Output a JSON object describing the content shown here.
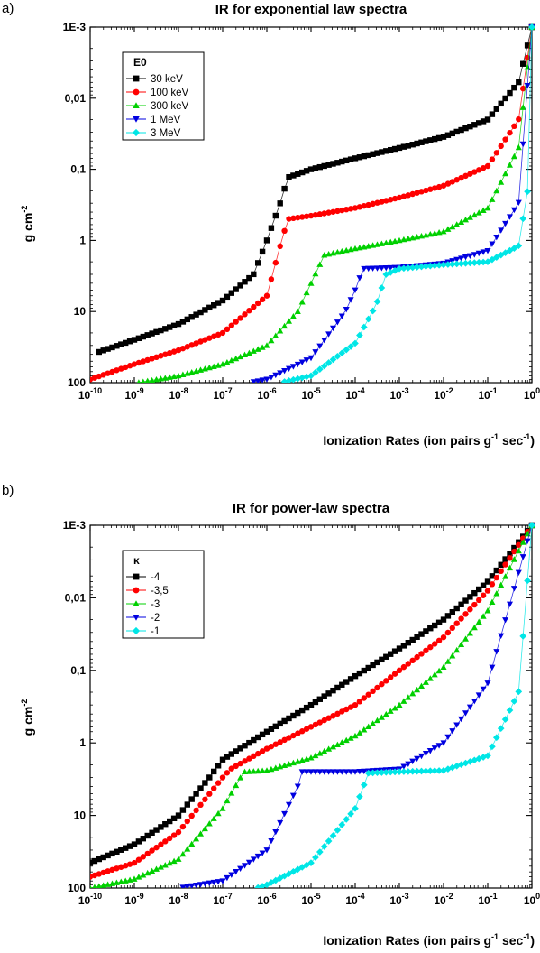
{
  "chart_data": [
    {
      "type": "scatter",
      "panel_label": "a)",
      "title": "IR for exponential law spectra",
      "xlabel_main": "Ionization Rates (ion pairs g",
      "xlabel_sup1": "-1",
      "xlabel_mid": " sec",
      "xlabel_sup2": "-1",
      "xlabel_end": ")",
      "ylabel_main": "g cm",
      "ylabel_sup": "-2",
      "x_scale": "log",
      "y_scale": "log",
      "y_reversed": true,
      "xlim": [
        1e-10,
        1
      ],
      "ylim": [
        0.001,
        100
      ],
      "x_tick_labels": [
        "10-10",
        "10-9",
        "10-8",
        "10-7",
        "10-6",
        "10-5",
        "10-4",
        "10-3",
        "10-2",
        "10-1",
        "100"
      ],
      "y_tick_labels": [
        "1E-3",
        "0,01",
        "0,1",
        "1",
        "10",
        "100"
      ],
      "legend_title": "E0",
      "legend_position": "top-left",
      "series": [
        {
          "name": "30 keV",
          "color": "#000000",
          "marker": "square",
          "x": [
            1.4e-10,
            1e-09,
            1e-08,
            1e-07,
            5e-07,
            1e-06,
            2e-06,
            3e-06,
            1e-05,
            0.0001,
            0.001,
            0.01,
            0.1,
            0.5,
            1
          ],
          "y": [
            38,
            25,
            15,
            7,
            3,
            1,
            0.3,
            0.13,
            0.1,
            0.07,
            0.05,
            0.035,
            0.02,
            0.006,
            0.001
          ]
        },
        {
          "name": "100 keV",
          "color": "#ff0000",
          "marker": "circle",
          "x": [
            1e-10,
            1e-09,
            1e-08,
            1e-07,
            1e-06,
            2e-06,
            3e-06,
            1e-05,
            0.0001,
            0.001,
            0.01,
            0.1,
            0.5,
            1
          ],
          "y": [
            90,
            55,
            35,
            20,
            6,
            1.2,
            0.5,
            0.45,
            0.35,
            0.25,
            0.17,
            0.09,
            0.02,
            0.001
          ]
        },
        {
          "name": "300 keV",
          "color": "#00d000",
          "marker": "triangle-up",
          "x": [
            1.2e-09,
            1e-08,
            1e-07,
            1e-06,
            5e-06,
            1e-05,
            2e-05,
            0.0001,
            0.001,
            0.01,
            0.1,
            0.5,
            1
          ],
          "y": [
            100,
            80,
            55,
            30,
            10,
            4,
            1.6,
            1.3,
            1,
            0.75,
            0.35,
            0.05,
            0.001
          ]
        },
        {
          "name": "1 MeV",
          "color": "#0000e0",
          "marker": "triangle-down",
          "x": [
            4e-07,
            1e-06,
            1e-05,
            6e-05,
            0.0001,
            0.00015,
            0.001,
            0.01,
            0.1,
            0.5,
            1
          ],
          "y": [
            100,
            90,
            45,
            10,
            5,
            2.5,
            2.4,
            2.1,
            1.4,
            0.3,
            0.001
          ]
        },
        {
          "name": "3 MeV",
          "color": "#00e6e6",
          "marker": "diamond",
          "x": [
            2e-06,
            1e-05,
            0.0001,
            0.0003,
            0.0005,
            0.001,
            0.01,
            0.1,
            0.5,
            0.8,
            1
          ],
          "y": [
            100,
            80,
            28,
            8,
            3,
            2.5,
            2.2,
            2.0,
            1.2,
            0.2,
            0.001
          ]
        }
      ]
    },
    {
      "type": "scatter",
      "panel_label": "b)",
      "title": "IR for power-law spectra",
      "xlabel_main": "Ionization Rates (ion pairs g",
      "xlabel_sup1": "-1",
      "xlabel_mid": " sec",
      "xlabel_sup2": "-1",
      "xlabel_end": ")",
      "ylabel_main": "g cm",
      "ylabel_sup": "-2",
      "x_scale": "log",
      "y_scale": "log",
      "y_reversed": true,
      "xlim": [
        1e-10,
        1
      ],
      "ylim": [
        0.001,
        100
      ],
      "x_tick_labels": [
        "10-10",
        "10-9",
        "10-8",
        "10-7",
        "10-6",
        "10-5",
        "10-4",
        "10-3",
        "10-2",
        "10-1",
        "100"
      ],
      "y_tick_labels": [
        "1E-3",
        "0,01",
        "0,1",
        "1",
        "10",
        "100"
      ],
      "legend_title": "κ",
      "legend_position": "top-left",
      "series": [
        {
          "name": "-4",
          "color": "#000000",
          "marker": "square",
          "x": [
            1e-10,
            1e-09,
            1e-08,
            5e-08,
            1e-07,
            1e-06,
            1e-05,
            0.0001,
            0.001,
            0.01,
            0.1,
            1
          ],
          "y": [
            45,
            25,
            10,
            3,
            1.7,
            0.7,
            0.3,
            0.12,
            0.05,
            0.02,
            0.006,
            0.001
          ]
        },
        {
          "name": "-3,5",
          "color": "#ff0000",
          "marker": "circle",
          "x": [
            1e-10,
            1e-09,
            1e-08,
            1e-07,
            1.5e-07,
            1e-06,
            1e-05,
            0.0001,
            0.001,
            0.01,
            0.1,
            1
          ],
          "y": [
            70,
            45,
            17,
            3,
            2.3,
            1.2,
            0.6,
            0.3,
            0.1,
            0.035,
            0.008,
            0.001
          ]
        },
        {
          "name": "-3",
          "color": "#00d000",
          "marker": "triangle-up",
          "x": [
            1e-10,
            1e-09,
            1e-08,
            1e-07,
            3e-07,
            1e-06,
            1e-05,
            0.0001,
            0.001,
            0.01,
            0.1,
            1
          ],
          "y": [
            100,
            75,
            40,
            8,
            2.5,
            2.4,
            1.6,
            0.8,
            0.3,
            0.09,
            0.015,
            0.001
          ]
        },
        {
          "name": "-2",
          "color": "#0000e0",
          "marker": "triangle-down",
          "x": [
            1e-08,
            1e-07,
            1e-06,
            5e-06,
            6e-06,
            1e-05,
            0.0001,
            0.001,
            0.01,
            0.1,
            1
          ],
          "y": [
            100,
            80,
            30,
            4,
            2.5,
            2.5,
            2.5,
            2.3,
            1,
            0.15,
            0.001
          ]
        },
        {
          "name": "-1",
          "color": "#00e6e6",
          "marker": "diamond",
          "x": [
            6e-07,
            1e-06,
            1e-05,
            0.0001,
            0.0002,
            0.001,
            0.01,
            0.1,
            0.5,
            1
          ],
          "y": [
            100,
            90,
            45,
            8,
            2.6,
            2.5,
            2.4,
            1.5,
            0.2,
            0.001
          ]
        }
      ]
    }
  ]
}
